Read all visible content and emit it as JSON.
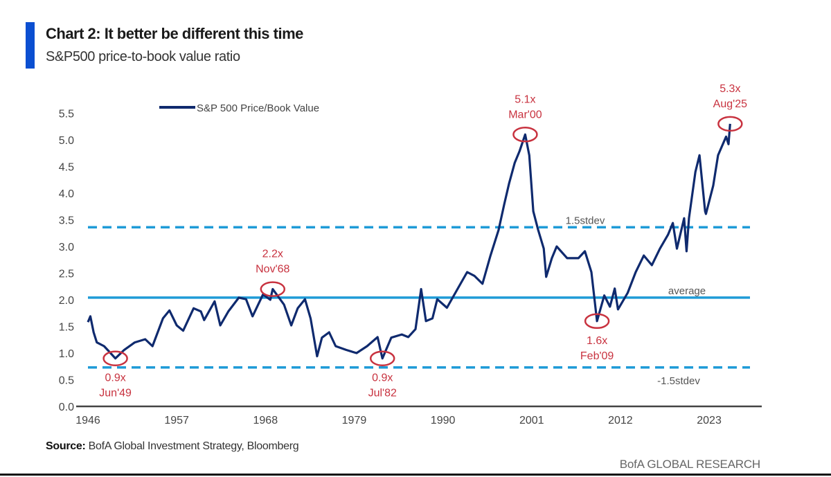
{
  "header": {
    "title": "Chart 2: It better be different this time",
    "subtitle": "S&P500 price-to-book value ratio"
  },
  "footer": {
    "source_label": "Source:",
    "source_text": " BofA Global Investment Strategy, Bloomberg",
    "brand": "BofA GLOBAL RESEARCH"
  },
  "colors": {
    "series": "#0f2a6e",
    "reference": "#1f9bd7",
    "annotation": "#c8323f",
    "accent_bar": "#0b4fd1"
  },
  "chart_data": {
    "type": "line",
    "title": "Chart 2: It better be different this time",
    "subtitle": "S&P500 price-to-book value ratio",
    "xlabel": "",
    "ylabel": "",
    "xlim": [
      1946,
      2030
    ],
    "ylim": [
      0,
      5.5
    ],
    "x_ticks": [
      "1946",
      "1957",
      "1968",
      "1979",
      "1990",
      "2001",
      "2012",
      "2023"
    ],
    "y_ticks": [
      "0.0",
      "0.5",
      "1.0",
      "1.5",
      "2.0",
      "2.5",
      "3.0",
      "3.5",
      "4.0",
      "4.5",
      "5.0",
      "5.5"
    ],
    "grid": false,
    "legend": {
      "position": "top-left",
      "entries": [
        "S&P 500 Price/Book Value"
      ]
    },
    "series": [
      {
        "name": "S&P 500 Price/Book Value",
        "x": [
          1946.0,
          1946.3,
          1946.7,
          1947.1,
          1948.0,
          1948.8,
          1949.4,
          1950.5,
          1951.8,
          1953.1,
          1954.0,
          1955.3,
          1956.1,
          1957.0,
          1957.8,
          1959.1,
          1960.0,
          1960.4,
          1961.7,
          1962.4,
          1963.4,
          1964.7,
          1965.6,
          1966.4,
          1967.7,
          1968.6,
          1968.9,
          1970.3,
          1971.2,
          1972.0,
          1972.9,
          1973.6,
          1974.4,
          1975.0,
          1975.9,
          1976.7,
          1978.0,
          1979.3,
          1980.6,
          1981.9,
          1982.5,
          1983.6,
          1984.9,
          1985.7,
          1986.6,
          1987.3,
          1987.9,
          1988.7,
          1989.3,
          1990.5,
          1991.8,
          1993.0,
          1993.9,
          1994.9,
          1995.9,
          1996.9,
          1997.6,
          1998.2,
          1998.9,
          1999.5,
          2000.2,
          2000.7,
          2001.2,
          2001.8,
          2002.5,
          2002.8,
          2003.5,
          2004.1,
          2005.4,
          2006.8,
          2007.6,
          2008.4,
          2009.1,
          2010.0,
          2010.7,
          2011.3,
          2011.7,
          2012.9,
          2013.9,
          2014.9,
          2015.9,
          2016.9,
          2017.9,
          2018.5,
          2019.0,
          2019.9,
          2020.2,
          2020.5,
          2021.3,
          2021.8,
          2022.5,
          2022.6,
          2023.5,
          2024.1,
          2025.1,
          2025.4,
          2025.6
        ],
        "y": [
          1.58,
          1.69,
          1.39,
          1.2,
          1.13,
          1.0,
          0.9,
          1.06,
          1.2,
          1.26,
          1.13,
          1.65,
          1.8,
          1.52,
          1.42,
          1.84,
          1.78,
          1.62,
          1.97,
          1.52,
          1.78,
          2.04,
          2.01,
          1.69,
          2.1,
          2.0,
          2.2,
          1.91,
          1.52,
          1.84,
          2.01,
          1.65,
          0.94,
          1.29,
          1.39,
          1.13,
          1.06,
          1.0,
          1.13,
          1.3,
          0.9,
          1.29,
          1.35,
          1.3,
          1.45,
          2.2,
          1.6,
          1.65,
          2.01,
          1.85,
          2.2,
          2.52,
          2.45,
          2.3,
          2.83,
          3.31,
          3.79,
          4.18,
          4.57,
          4.79,
          5.1,
          4.71,
          3.66,
          3.31,
          2.96,
          2.43,
          2.78,
          3.0,
          2.78,
          2.78,
          2.91,
          2.52,
          1.6,
          2.08,
          1.87,
          2.21,
          1.82,
          2.13,
          2.52,
          2.83,
          2.65,
          2.96,
          3.22,
          3.44,
          2.96,
          3.53,
          2.91,
          3.53,
          4.4,
          4.71,
          3.66,
          3.61,
          4.14,
          4.71,
          5.06,
          4.92,
          5.3
        ]
      }
    ],
    "reference_lines": [
      {
        "label": "1.5stdev",
        "value": 3.36,
        "style": "dashed"
      },
      {
        "label": "average",
        "value": 2.04,
        "style": "solid"
      },
      {
        "label": "-1.5stdev",
        "value": 0.73,
        "style": "dashed"
      }
    ],
    "annotations": [
      {
        "value_label": "0.9x",
        "date_label": "Jun'49",
        "x": 1949.4,
        "y": 0.9,
        "placement": "below"
      },
      {
        "value_label": "2.2x",
        "date_label": "Nov'68",
        "x": 1968.9,
        "y": 2.2,
        "placement": "above"
      },
      {
        "value_label": "0.9x",
        "date_label": "Jul'82",
        "x": 1982.5,
        "y": 0.9,
        "placement": "below"
      },
      {
        "value_label": "5.1x",
        "date_label": "Mar'00",
        "x": 2000.2,
        "y": 5.1,
        "placement": "above"
      },
      {
        "value_label": "1.6x",
        "date_label": "Feb'09",
        "x": 2009.1,
        "y": 1.6,
        "placement": "below"
      },
      {
        "value_label": "5.3x",
        "date_label": "Aug'25",
        "x": 2025.6,
        "y": 5.3,
        "placement": "above"
      }
    ]
  }
}
